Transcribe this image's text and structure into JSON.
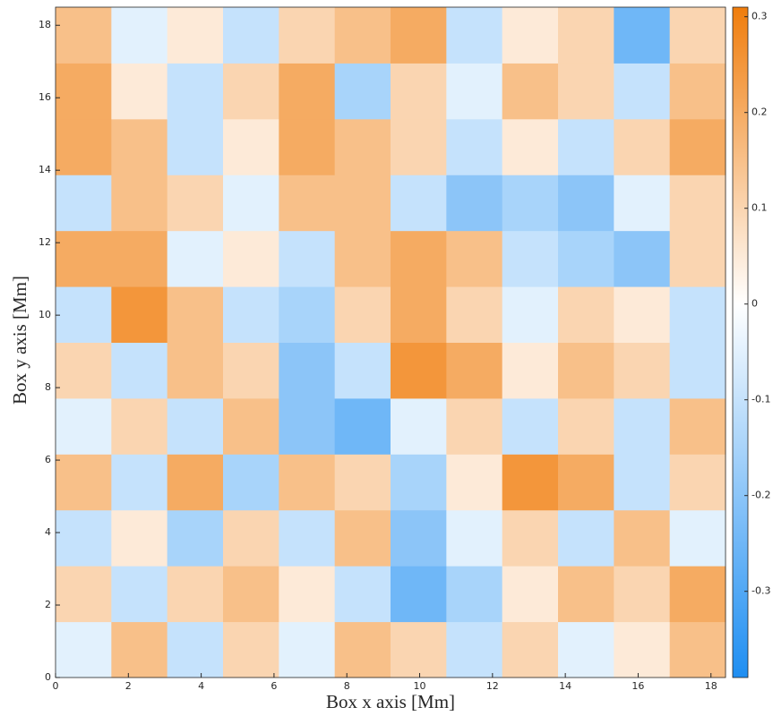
{
  "chart_data": {
    "type": "heatmap",
    "xlabel": "Box x axis [Mm]",
    "ylabel": "Box y axis [Mm]",
    "xlim": [
      0,
      18.4
    ],
    "ylim": [
      0,
      18.5
    ],
    "xticks": [
      0,
      2,
      4,
      6,
      8,
      10,
      12,
      14,
      16,
      18
    ],
    "yticks": [
      0,
      2,
      4,
      6,
      8,
      10,
      12,
      14,
      16,
      18
    ],
    "clim": [
      -0.39,
      0.31
    ],
    "cticks": [
      -0.3,
      -0.2,
      -0.1,
      0,
      0.1,
      0.2,
      0.3
    ],
    "colormap": [
      "#1e8ef2",
      "#ffffff",
      "#f07d0c"
    ],
    "z": [
      [
        -0.05,
        0.15,
        -0.1,
        0.1,
        -0.05,
        0.15,
        0.1,
        -0.1,
        0.1,
        -0.05,
        0.05,
        0.15
      ],
      [
        0.1,
        -0.1,
        0.1,
        0.15,
        0.05,
        -0.1,
        -0.25,
        -0.15,
        0.05,
        0.15,
        0.1,
        0.2
      ],
      [
        -0.1,
        0.05,
        -0.15,
        0.1,
        -0.1,
        0.15,
        -0.2,
        -0.05,
        0.1,
        -0.1,
        0.15,
        -0.05
      ],
      [
        0.15,
        -0.1,
        0.2,
        -0.15,
        0.15,
        0.1,
        -0.15,
        0.05,
        0.25,
        0.2,
        -0.1,
        0.1
      ],
      [
        -0.05,
        0.1,
        -0.1,
        0.15,
        -0.2,
        -0.25,
        -0.05,
        0.1,
        -0.1,
        0.1,
        -0.1,
        0.15
      ],
      [
        0.1,
        -0.1,
        0.15,
        0.1,
        -0.2,
        -0.1,
        0.25,
        0.2,
        0.05,
        0.15,
        0.1,
        -0.1
      ],
      [
        -0.1,
        0.25,
        0.15,
        -0.1,
        -0.15,
        0.1,
        0.2,
        0.1,
        -0.05,
        0.1,
        0.05,
        -0.1
      ],
      [
        0.2,
        0.2,
        -0.05,
        0.05,
        -0.1,
        0.15,
        0.2,
        0.15,
        -0.1,
        -0.15,
        -0.2,
        0.1
      ],
      [
        -0.1,
        0.15,
        0.1,
        -0.05,
        0.15,
        0.15,
        -0.1,
        -0.2,
        -0.15,
        -0.2,
        -0.05,
        0.1
      ],
      [
        0.2,
        0.15,
        -0.1,
        0.05,
        0.2,
        0.15,
        0.1,
        -0.1,
        0.05,
        -0.1,
        0.1,
        0.2
      ],
      [
        0.2,
        0.05,
        -0.1,
        0.1,
        0.2,
        -0.15,
        0.1,
        -0.05,
        0.15,
        0.1,
        -0.1,
        0.15
      ],
      [
        0.15,
        -0.05,
        0.05,
        -0.1,
        0.1,
        0.15,
        0.2,
        -0.1,
        0.05,
        0.1,
        -0.25,
        0.1
      ]
    ]
  }
}
